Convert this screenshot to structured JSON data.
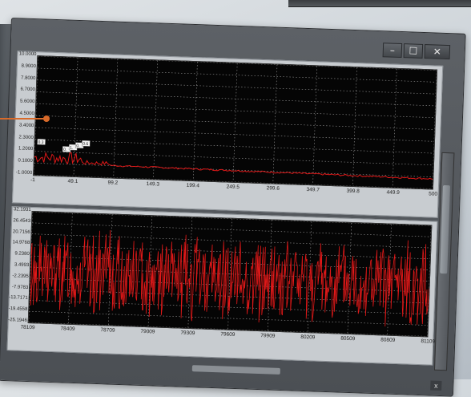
{
  "window": {
    "controls": {
      "minimize": "–",
      "maximize": "☐",
      "close": "✕"
    }
  },
  "spectrum_plot": {
    "y_ticks": [
      "10.0000",
      "8.9000",
      "7.8000",
      "6.7000",
      "5.6000",
      "4.5000",
      "3.4000",
      "2.3000",
      "1.2000",
      "0.1000",
      "-1.0000"
    ],
    "x_ticks": [
      "-1",
      "49.1",
      "99.2",
      "149.3",
      "199.4",
      "249.5",
      "299.6",
      "349.7",
      "399.8",
      "449.9",
      "500"
    ],
    "ylim": [
      -1.0,
      10.0
    ],
    "xlim": [
      -1,
      500
    ],
    "peak_labels": [
      "0.3",
      "0.",
      "1.",
      "0.",
      "0.6"
    ]
  },
  "time_plot": {
    "y_ticks": [
      "32.1931",
      "26.4543",
      "20.7156",
      "14.9768",
      "9.2380",
      "3.4993",
      "-2.2395",
      "-7.9783",
      "-13.7171",
      "-19.4558",
      "-25.1946"
    ],
    "x_ticks": [
      "78109",
      "78409",
      "78709",
      "79009",
      "79309",
      "79609",
      "79909",
      "80209",
      "80509",
      "80809",
      "81109"
    ],
    "ylim": [
      -25.1946,
      32.1931
    ],
    "xlim": [
      78109,
      81109
    ]
  },
  "status_close": "x",
  "colors": {
    "trace": "#e01818",
    "grid": "#9a9a9a",
    "plot_bg": "#050505",
    "callout": "#d86a2a"
  }
}
